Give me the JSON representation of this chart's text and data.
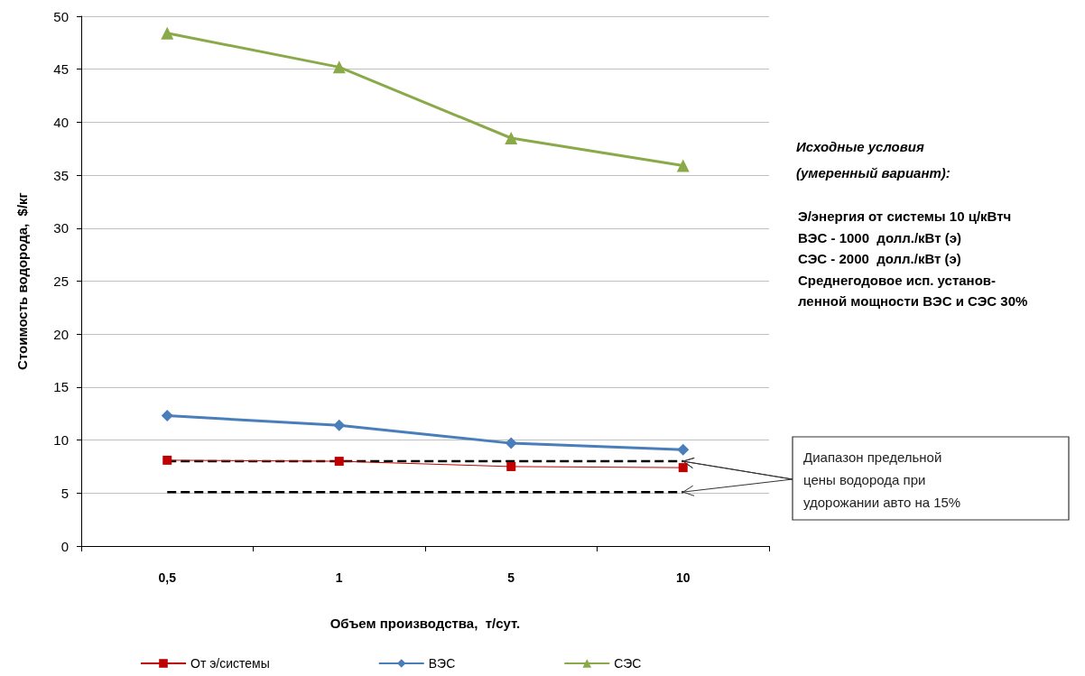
{
  "chart_data": {
    "type": "line",
    "xlabel": "Объем производства,  т/сут.",
    "ylabel": "Стоимость водорода,  $/кг",
    "categories": [
      "0,5",
      "1",
      "5",
      "10"
    ],
    "series": [
      {
        "name": "От э/системы",
        "color": "#c00000",
        "values": [
          8.1,
          8.0,
          7.5,
          7.4
        ],
        "marker": "square"
      },
      {
        "name": "ВЭС",
        "color": "#4a7ebb",
        "values": [
          12.3,
          11.4,
          9.7,
          9.1
        ],
        "marker": "diamond"
      },
      {
        "name": "СЭС",
        "color": "#8aaa4a",
        "values": [
          48.4,
          45.2,
          38.5,
          35.9
        ],
        "marker": "triangle"
      },
      {
        "color": "#000000",
        "values": [
          8.0,
          8.0,
          8.0,
          8.0
        ],
        "marker": "none",
        "line_style": "dashed"
      },
      {
        "color": "#000000",
        "values": [
          5.1,
          5.1,
          5.1,
          5.1
        ],
        "marker": "none",
        "line_style": "dashed"
      }
    ],
    "ylim": [
      0,
      50
    ],
    "yticks": [
      0,
      5,
      10,
      15,
      20,
      25,
      30,
      35,
      40,
      45,
      50
    ],
    "grid": "y",
    "legend": "bottom",
    "annotations": [
      "Исходные условия (умеренный вариант):",
      "Э/энергия от системы 10 ц/кВтч",
      "ВЭС - 1000  долл./кВт (э)",
      "СЭС - 2000  долл./кВт (э)",
      "Среднегодовое исп. установ-",
      "ленной мощности ВЭС и СЭС 30%",
      {
        "text": "Диапазон предельной цены водорода при удорожании авто на 15%",
        "x": "10",
        "y": 8.0
      }
    ]
  }
}
